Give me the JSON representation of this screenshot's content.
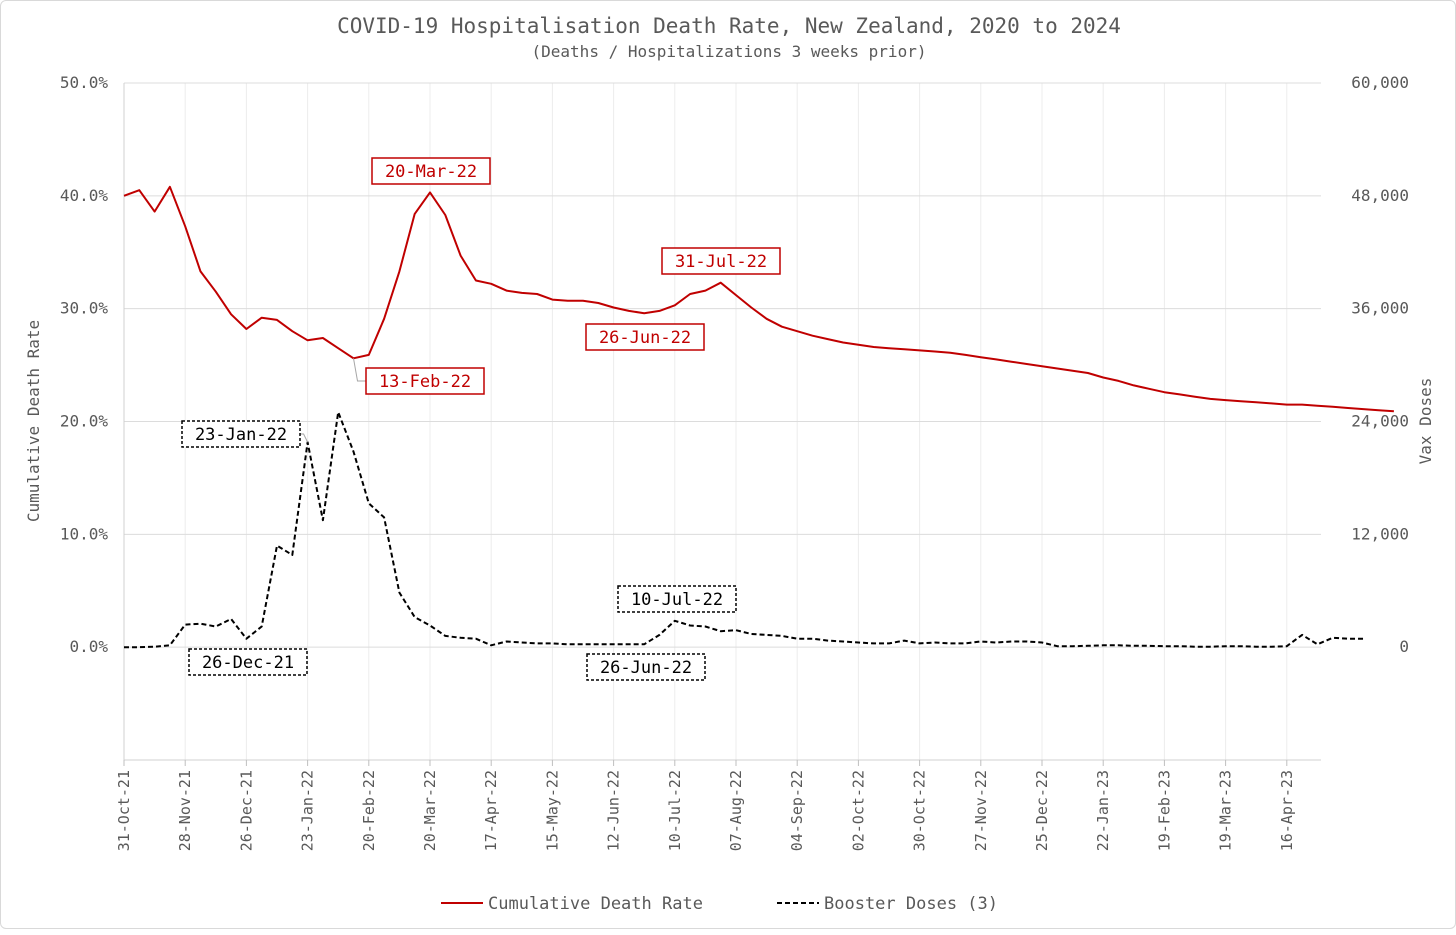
{
  "chart_data": {
    "type": "line",
    "title": "COVID-19 Hospitalisation Death Rate, New Zealand, 2020 to 2024",
    "subtitle": "(Deaths / Hospitalizations 3 weeks prior)",
    "ylabel_left": "Cumulative Death Rate",
    "ylabel_right": "Vax Doses",
    "ylim_left": [
      -10,
      50
    ],
    "ylim_right": [
      -12000,
      60000
    ],
    "yticks_left": [
      0,
      10,
      20,
      30,
      40,
      50
    ],
    "yticks_left_labels": [
      "0.0%",
      "10.0%",
      "20.0%",
      "30.0%",
      "40.0%",
      "50.0%"
    ],
    "yticks_right": [
      0,
      12000,
      24000,
      36000,
      48000,
      60000
    ],
    "yticks_right_labels": [
      "0",
      "12,000",
      "24,000",
      "36,000",
      "48,000",
      "60,000"
    ],
    "x_tick_labels": [
      "31-Oct-21",
      "28-Nov-21",
      "26-Dec-21",
      "23-Jan-22",
      "20-Feb-22",
      "20-Mar-22",
      "17-Apr-22",
      "15-May-22",
      "12-Jun-22",
      "10-Jul-22",
      "07-Aug-22",
      "04-Sep-22",
      "02-Oct-22",
      "30-Oct-22",
      "27-Nov-22",
      "25-Dec-22",
      "22-Jan-23",
      "19-Feb-23",
      "19-Mar-23",
      "16-Apr-23"
    ],
    "x_start": "31-Oct-21",
    "x_step": "weekly",
    "grid": "horizontal and vertical",
    "legend_position": "bottom",
    "series": [
      {
        "name": "Cumulative Death Rate",
        "axis": "left",
        "color": "#c00000",
        "style": "solid",
        "values": [
          40.0,
          40.5,
          38.6,
          40.8,
          37.3,
          33.3,
          31.5,
          29.5,
          28.2,
          29.2,
          29.0,
          28.0,
          27.2,
          27.4,
          26.5,
          25.6,
          25.9,
          29.1,
          33.3,
          38.4,
          40.3,
          38.3,
          34.7,
          32.5,
          32.2,
          31.6,
          31.4,
          31.3,
          30.8,
          30.7,
          30.7,
          30.5,
          30.1,
          29.8,
          29.6,
          29.8,
          30.3,
          31.3,
          31.6,
          32.3,
          31.2,
          30.1,
          29.1,
          28.4,
          28.0,
          27.6,
          27.3,
          27.0,
          26.8,
          26.6,
          26.5,
          26.4,
          26.3,
          26.2,
          26.1,
          25.9,
          25.7,
          25.5,
          25.3,
          25.1,
          24.9,
          24.7,
          24.5,
          24.3,
          23.9,
          23.6,
          23.2,
          22.9,
          22.6,
          22.4,
          22.2,
          22.0,
          21.9,
          21.8,
          21.7,
          21.6,
          21.5,
          21.5,
          21.4,
          21.3,
          21.2,
          21.1,
          21.0,
          20.9
        ]
      },
      {
        "name": "Booster Doses (3)",
        "axis": "right",
        "color": "#000000",
        "style": "dashed",
        "values": [
          0,
          0,
          50,
          200,
          2400,
          2500,
          2200,
          3000,
          900,
          2200,
          10800,
          9800,
          21800,
          13500,
          25000,
          20800,
          15300,
          13800,
          5800,
          3200,
          2300,
          1200,
          1000,
          900,
          200,
          600,
          500,
          400,
          400,
          300,
          300,
          300,
          300,
          300,
          300,
          1300,
          2800,
          2300,
          2200,
          1700,
          1800,
          1400,
          1300,
          1200,
          900,
          900,
          700,
          600,
          500,
          400,
          400,
          700,
          400,
          500,
          400,
          400,
          600,
          500,
          600,
          600,
          500,
          100,
          100,
          150,
          200,
          200,
          150,
          150,
          100,
          100,
          50,
          50,
          100,
          100,
          50,
          50,
          100,
          1300,
          300,
          1000,
          900,
          900
        ]
      }
    ],
    "annotations": [
      {
        "text": "20-Mar-22",
        "series": "Cumulative Death Rate",
        "index": 20
      },
      {
        "text": "31-Jul-22",
        "series": "Cumulative Death Rate",
        "index": 39
      },
      {
        "text": "26-Jun-22",
        "series": "Cumulative Death Rate",
        "index": 34
      },
      {
        "text": "13-Feb-22",
        "series": "Cumulative Death Rate",
        "index": 15
      },
      {
        "text": "23-Jan-22",
        "series": "Booster Doses (3)",
        "index": 12
      },
      {
        "text": "26-Dec-21",
        "series": "Booster Doses (3)",
        "index": 8
      },
      {
        "text": "10-Jul-22",
        "series": "Booster Doses (3)",
        "index": 36
      },
      {
        "text": "26-Jun-22",
        "series": "Booster Doses (3)",
        "index": 34
      }
    ]
  }
}
